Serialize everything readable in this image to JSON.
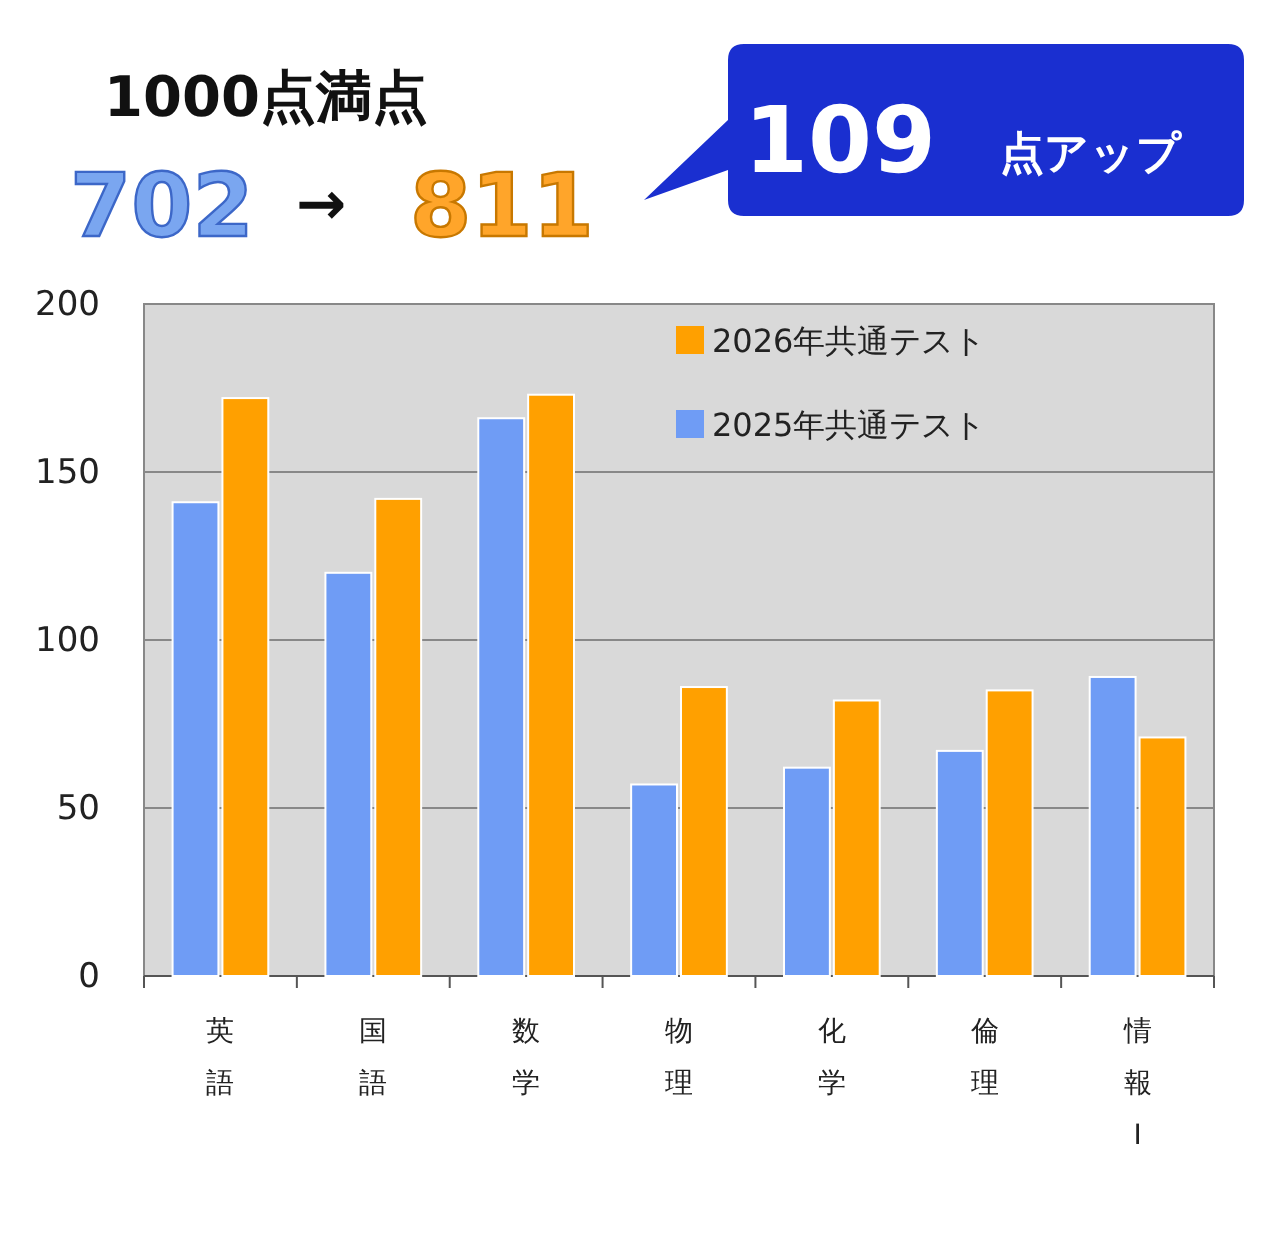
{
  "chart_data": {
    "type": "bar",
    "categories": [
      "英語",
      "国語",
      "数学",
      "物理",
      "化学",
      "倫理",
      "情報Ⅰ"
    ],
    "series": [
      {
        "name": "2025年共通テスト",
        "color": "#6f9cf5",
        "values": [
          141,
          120,
          166,
          57,
          62,
          67,
          89
        ]
      },
      {
        "name": "2026年共通テスト",
        "color": "#ffa000",
        "values": [
          172,
          142,
          173,
          86,
          82,
          85,
          71
        ]
      }
    ],
    "ylim": [
      0,
      200
    ],
    "yticks": [
      0,
      50,
      100,
      150,
      200
    ],
    "grid": "y",
    "legend": "top right",
    "annotations": [
      "1000点満点",
      "702",
      "→",
      "811",
      "109",
      "点アップ"
    ]
  }
}
